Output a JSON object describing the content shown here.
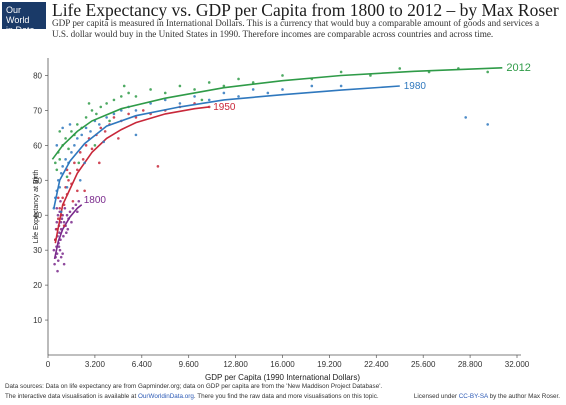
{
  "logo": {
    "line1": "Our World",
    "line2": "in Data"
  },
  "header": {
    "title": "Life Expectancy vs. GDP per Capita from 1800 to 2012 – by Max Roser",
    "subtitle": "GDP per capita is measured in International Dollars. This is a currency that would buy a comparable amount of goods and services a U.S. dollar would buy in the United States in 1990. Therefore incomes are comparable across countries and across time."
  },
  "footer": {
    "line1": "Data sources: Data on life expectancy are from Gapminder.org; data on GDP per capita are from the 'New Maddison Project Database'.",
    "line2_prefix": "The interactive data visualisation is available at",
    "line2_link": "OurWorldinData.org",
    "line2_suffix": ". There you find the raw data and more visualisations on this topic.",
    "license_prefix": "Licensed under",
    "license_link": "CC-BY-SA",
    "license_suffix": "by the author Max Roser."
  },
  "colors": {
    "1800": "#7a2a8c",
    "1950": "#c8283a",
    "1980": "#2f78be",
    "2012": "#2f9b48",
    "logo_bg": "#1a3a68",
    "link": "#2b59b5"
  },
  "chart_data": {
    "type": "scatter",
    "title": "Life Expectancy vs. GDP per Capita from 1800 to 2012 – by Max Roser",
    "xlabel": "GDP per Capita (1990 International Dollars)",
    "ylabel": "Life Expectancy at Birth",
    "xlim": [
      0,
      32000
    ],
    "ylim": [
      0,
      85
    ],
    "xticks": [
      0,
      3200,
      6400,
      9600,
      12800,
      16000,
      19200,
      22400,
      25600,
      28800,
      32000
    ],
    "xtick_labels": [
      "0",
      "3.200",
      "6.400",
      "9.600",
      "12.800",
      "16.000",
      "19.200",
      "22.400",
      "25.600",
      "28.800",
      "32.000"
    ],
    "yticks": [
      10,
      20,
      30,
      40,
      50,
      60,
      70,
      80
    ],
    "grid": false,
    "series": [
      {
        "name": "1800",
        "color": "#7a2a8c",
        "points": [
          [
            400,
            30
          ],
          [
            450,
            26
          ],
          [
            500,
            33
          ],
          [
            520,
            28
          ],
          [
            550,
            36
          ],
          [
            580,
            31
          ],
          [
            600,
            38
          ],
          [
            620,
            29
          ],
          [
            650,
            34
          ],
          [
            680,
            40
          ],
          [
            700,
            27
          ],
          [
            720,
            32
          ],
          [
            750,
            37
          ],
          [
            780,
            35
          ],
          [
            800,
            41
          ],
          [
            820,
            30
          ],
          [
            850,
            33
          ],
          [
            880,
            38
          ],
          [
            900,
            36
          ],
          [
            950,
            39
          ],
          [
            1000,
            40
          ],
          [
            1050,
            34
          ],
          [
            1100,
            38
          ],
          [
            1150,
            42
          ],
          [
            1200,
            37
          ],
          [
            1300,
            40
          ],
          [
            1400,
            39
          ],
          [
            1500,
            41
          ],
          [
            1700,
            42
          ],
          [
            1900,
            43
          ],
          [
            2100,
            44
          ],
          [
            650,
            24
          ],
          [
            900,
            28
          ],
          [
            1250,
            35
          ],
          [
            600,
            42
          ],
          [
            1000,
            29
          ],
          [
            1600,
            38
          ],
          [
            850,
            44
          ],
          [
            2000,
            41
          ],
          [
            1100,
            26
          ],
          [
            750,
            31
          ],
          [
            1350,
            36
          ]
        ],
        "fit": [
          [
            450,
            27.5
          ],
          [
            700,
            32.5
          ],
          [
            1000,
            36
          ],
          [
            1500,
            39.5
          ],
          [
            2000,
            42
          ],
          [
            2300,
            43
          ]
        ]
      },
      {
        "name": "1950",
        "color": "#c8283a",
        "points": [
          [
            500,
            33
          ],
          [
            600,
            36
          ],
          [
            700,
            39
          ],
          [
            800,
            42
          ],
          [
            900,
            40
          ],
          [
            1000,
            45
          ],
          [
            1100,
            43
          ],
          [
            1200,
            48
          ],
          [
            1300,
            46
          ],
          [
            1400,
            50
          ],
          [
            1500,
            52
          ],
          [
            1600,
            49
          ],
          [
            1800,
            55
          ],
          [
            2000,
            53
          ],
          [
            2200,
            58
          ],
          [
            2400,
            56
          ],
          [
            2600,
            60
          ],
          [
            2800,
            62
          ],
          [
            3000,
            59
          ],
          [
            3300,
            63
          ],
          [
            3600,
            65
          ],
          [
            3900,
            64
          ],
          [
            4200,
            66
          ],
          [
            4500,
            68
          ],
          [
            5000,
            67
          ],
          [
            5500,
            69
          ],
          [
            6000,
            68
          ],
          [
            6500,
            70
          ],
          [
            7000,
            69
          ],
          [
            8000,
            70
          ],
          [
            9000,
            71
          ],
          [
            10000,
            72
          ],
          [
            11000,
            71
          ],
          [
            700,
            45
          ],
          [
            1100,
            37
          ],
          [
            1700,
            44
          ],
          [
            2500,
            47
          ],
          [
            3500,
            55
          ],
          [
            4800,
            62
          ],
          [
            7500,
            54
          ],
          [
            1300,
            53
          ],
          [
            2000,
            47
          ]
        ],
        "fit": [
          [
            500,
            32
          ],
          [
            1000,
            43
          ],
          [
            2000,
            52
          ],
          [
            3000,
            58
          ],
          [
            4000,
            62
          ],
          [
            5000,
            64.5
          ],
          [
            6000,
            66.5
          ],
          [
            8000,
            69
          ],
          [
            10000,
            70.5
          ],
          [
            11000,
            71
          ]
        ]
      },
      {
        "name": "1980",
        "color": "#2f78be",
        "points": [
          [
            400,
            42
          ],
          [
            500,
            45
          ],
          [
            600,
            47
          ],
          [
            700,
            50
          ],
          [
            800,
            48
          ],
          [
            900,
            52
          ],
          [
            1000,
            54
          ],
          [
            1200,
            56
          ],
          [
            1400,
            55
          ],
          [
            1600,
            58
          ],
          [
            1800,
            60
          ],
          [
            2000,
            62
          ],
          [
            2300,
            63
          ],
          [
            2600,
            65
          ],
          [
            2900,
            64
          ],
          [
            3200,
            67
          ],
          [
            3500,
            66
          ],
          [
            4000,
            68
          ],
          [
            4500,
            69
          ],
          [
            5000,
            70
          ],
          [
            5500,
            71
          ],
          [
            6000,
            70
          ],
          [
            7000,
            72
          ],
          [
            8000,
            73
          ],
          [
            9000,
            72
          ],
          [
            10000,
            74
          ],
          [
            11000,
            73
          ],
          [
            12000,
            75
          ],
          [
            13000,
            74
          ],
          [
            14000,
            76
          ],
          [
            15000,
            75
          ],
          [
            16000,
            76
          ],
          [
            18000,
            77
          ],
          [
            20000,
            77
          ],
          [
            600,
            60
          ],
          [
            1000,
            65
          ],
          [
            1500,
            66
          ],
          [
            2500,
            55
          ],
          [
            3800,
            61
          ],
          [
            6000,
            63
          ],
          [
            28500,
            68
          ],
          [
            30000,
            66
          ],
          [
            900,
            41
          ],
          [
            1300,
            48
          ],
          [
            2200,
            50
          ]
        ],
        "fit": [
          [
            400,
            42
          ],
          [
            800,
            50
          ],
          [
            1500,
            55.5
          ],
          [
            2500,
            60.5
          ],
          [
            4000,
            65.5
          ],
          [
            6000,
            68.5
          ],
          [
            9000,
            71
          ],
          [
            12000,
            73
          ],
          [
            16000,
            74.5
          ],
          [
            20000,
            75.8
          ],
          [
            24000,
            77
          ]
        ]
      },
      {
        "name": "2012",
        "color": "#2f9b48",
        "points": [
          [
            500,
            55
          ],
          [
            600,
            53
          ],
          [
            700,
            58
          ],
          [
            800,
            56
          ],
          [
            1000,
            60
          ],
          [
            1200,
            62
          ],
          [
            1400,
            59
          ],
          [
            1600,
            64
          ],
          [
            1800,
            63
          ],
          [
            2000,
            66
          ],
          [
            2300,
            65
          ],
          [
            2600,
            68
          ],
          [
            3000,
            70
          ],
          [
            3300,
            69
          ],
          [
            3600,
            71
          ],
          [
            4000,
            72
          ],
          [
            4500,
            73
          ],
          [
            5000,
            74
          ],
          [
            5500,
            75
          ],
          [
            6000,
            74
          ],
          [
            7000,
            76
          ],
          [
            8000,
            75
          ],
          [
            9000,
            77
          ],
          [
            10000,
            76
          ],
          [
            11000,
            78
          ],
          [
            12000,
            77
          ],
          [
            13000,
            79
          ],
          [
            14000,
            78
          ],
          [
            16000,
            80
          ],
          [
            18000,
            79
          ],
          [
            20000,
            81
          ],
          [
            22000,
            80
          ],
          [
            24000,
            82
          ],
          [
            26000,
            81
          ],
          [
            28000,
            82
          ],
          [
            30000,
            81
          ],
          [
            1300,
            51
          ],
          [
            2100,
            55
          ],
          [
            3200,
            60
          ],
          [
            5200,
            77
          ],
          [
            800,
            64
          ],
          [
            2800,
            72
          ],
          [
            4200,
            67
          ],
          [
            10500,
            73
          ]
        ],
        "fit": [
          [
            300,
            56
          ],
          [
            1000,
            60
          ],
          [
            2000,
            64
          ],
          [
            3000,
            67
          ],
          [
            5000,
            70.5
          ],
          [
            8000,
            73.5
          ],
          [
            12000,
            76.5
          ],
          [
            16000,
            78.5
          ],
          [
            20000,
            80
          ],
          [
            25000,
            81.2
          ],
          [
            31000,
            82.2
          ]
        ]
      }
    ]
  }
}
